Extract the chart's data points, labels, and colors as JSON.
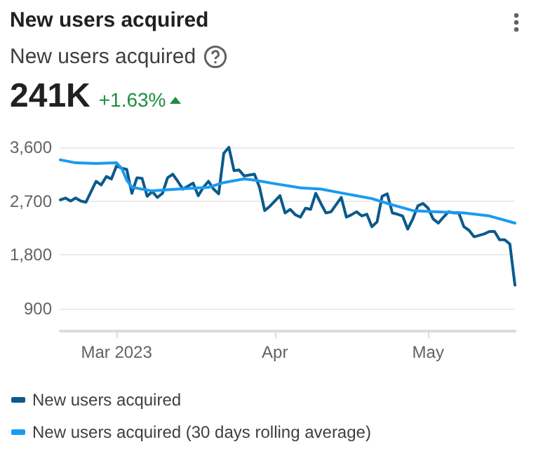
{
  "chart_data": {
    "type": "line",
    "title": "New users acquired",
    "subtitle": "New users acquired",
    "annotations": [
      "241K",
      "+1.63%"
    ],
    "xlim": [
      "2023-02-18",
      "2023-05-18"
    ],
    "xticks": [
      {
        "value": "2023-03-01",
        "label": "Mar 2023"
      },
      {
        "value": "2023-04-01",
        "label": "Apr"
      },
      {
        "value": "2023-05-01",
        "label": "May"
      }
    ],
    "ylim": [
      520,
      3600
    ],
    "yticks": [
      {
        "value": 900,
        "label": "900"
      },
      {
        "value": 1800,
        "label": "1,800"
      },
      {
        "value": 2700,
        "label": "2,700"
      },
      {
        "value": 3600,
        "label": "3,600"
      }
    ],
    "grid": "y",
    "legend": "bottom",
    "series": [
      {
        "name": "New users acquired",
        "color": "#0b5a8c",
        "x": [
          "2023-02-18",
          "2023-02-19",
          "2023-02-20",
          "2023-02-21",
          "2023-02-22",
          "2023-02-23",
          "2023-02-25",
          "2023-02-26",
          "2023-02-27",
          "2023-02-28",
          "2023-03-01",
          "2023-03-02",
          "2023-03-03",
          "2023-03-04",
          "2023-03-05",
          "2023-03-06",
          "2023-03-07",
          "2023-03-08",
          "2023-03-09",
          "2023-03-10",
          "2023-03-11",
          "2023-03-12",
          "2023-03-13",
          "2023-03-14",
          "2023-03-15",
          "2023-03-16",
          "2023-03-17",
          "2023-03-18",
          "2023-03-19",
          "2023-03-20",
          "2023-03-21",
          "2023-03-22",
          "2023-03-23",
          "2023-03-24",
          "2023-03-25",
          "2023-03-26",
          "2023-03-28",
          "2023-03-29",
          "2023-03-30",
          "2023-03-31",
          "2023-04-02",
          "2023-04-03",
          "2023-04-04",
          "2023-04-05",
          "2023-04-06",
          "2023-04-07",
          "2023-04-08",
          "2023-04-09",
          "2023-04-10",
          "2023-04-11",
          "2023-04-12",
          "2023-04-14",
          "2023-04-15",
          "2023-04-16",
          "2023-04-17",
          "2023-04-18",
          "2023-04-19",
          "2023-04-20",
          "2023-04-21",
          "2023-04-22",
          "2023-04-23",
          "2023-04-24",
          "2023-04-25",
          "2023-04-26",
          "2023-04-27",
          "2023-04-28",
          "2023-04-29",
          "2023-04-30",
          "2023-05-01",
          "2023-05-02",
          "2023-05-03",
          "2023-05-04",
          "2023-05-05",
          "2023-05-06",
          "2023-05-07",
          "2023-05-08",
          "2023-05-09",
          "2023-05-10",
          "2023-05-12",
          "2023-05-13",
          "2023-05-14",
          "2023-05-15",
          "2023-05-16",
          "2023-05-17",
          "2023-05-18"
        ],
        "values": [
          2720,
          2750,
          2700,
          2750,
          2700,
          2680,
          3030,
          2970,
          3110,
          3070,
          3290,
          3250,
          3230,
          2830,
          3090,
          3080,
          2780,
          2860,
          2760,
          2830,
          3090,
          3150,
          3030,
          2900,
          2950,
          3000,
          2790,
          2930,
          3030,
          2900,
          2820,
          3500,
          3600,
          3210,
          3220,
          3120,
          3150,
          2930,
          2540,
          2610,
          2790,
          2500,
          2560,
          2470,
          2430,
          2580,
          2560,
          2830,
          2660,
          2500,
          2520,
          2760,
          2430,
          2470,
          2520,
          2450,
          2480,
          2270,
          2350,
          2780,
          2820,
          2500,
          2480,
          2450,
          2230,
          2400,
          2620,
          2660,
          2580,
          2400,
          2330,
          2430,
          2520,
          2500,
          2500,
          2270,
          2210,
          2100,
          2150,
          2190,
          2190,
          2050,
          2050,
          1980,
          1290
        ]
      },
      {
        "name": "New users acquired (30 days rolling average)",
        "color": "#1a9bf0",
        "x": [
          "2023-02-18",
          "2023-02-21",
          "2023-02-25",
          "2023-03-01",
          "2023-03-02",
          "2023-03-03",
          "2023-03-04",
          "2023-03-08",
          "2023-03-13",
          "2023-03-19",
          "2023-03-22",
          "2023-03-26",
          "2023-03-28",
          "2023-04-01",
          "2023-04-06",
          "2023-04-10",
          "2023-04-15",
          "2023-04-20",
          "2023-04-23",
          "2023-04-28",
          "2023-05-02",
          "2023-05-08",
          "2023-05-13",
          "2023-05-18"
        ],
        "values": [
          3390,
          3340,
          3330,
          3340,
          3250,
          3050,
          2930,
          2870,
          2900,
          2930,
          3010,
          3070,
          3050,
          2990,
          2920,
          2900,
          2820,
          2740,
          2660,
          2540,
          2520,
          2500,
          2450,
          2330
        ]
      }
    ]
  }
}
